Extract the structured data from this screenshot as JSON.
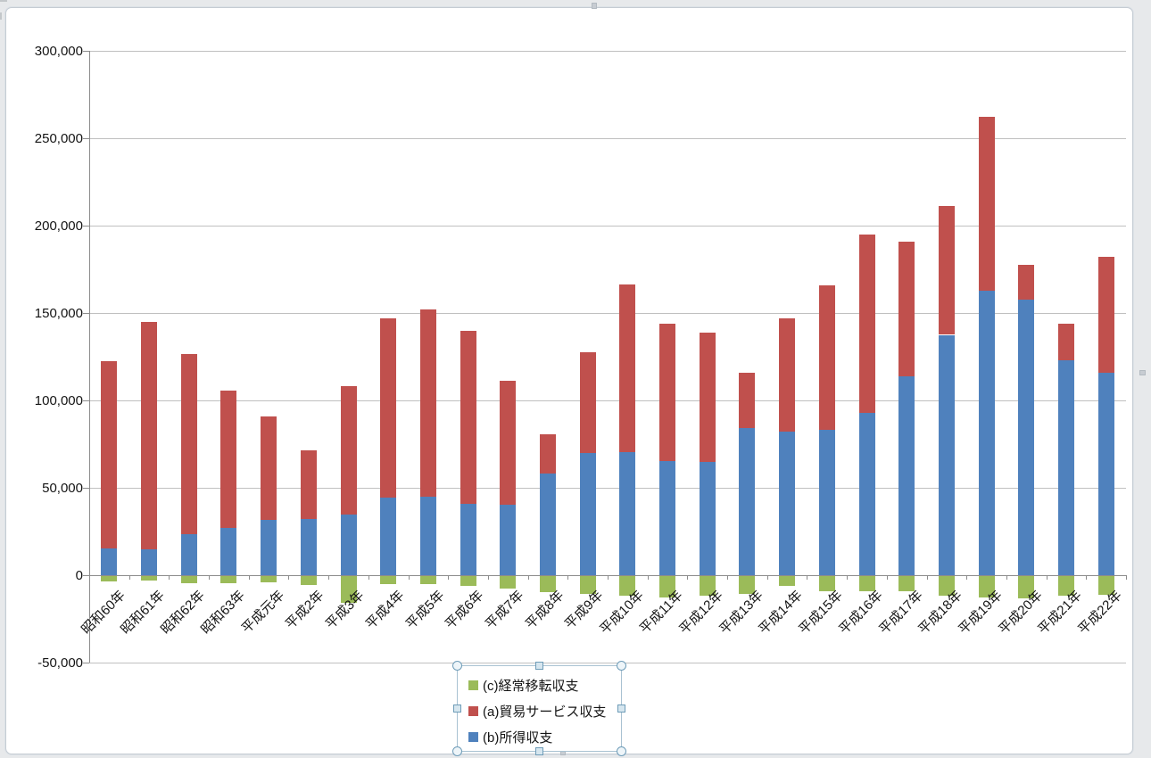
{
  "chart_data": {
    "type": "bar",
    "stacked": true,
    "categories": [
      "昭和60年",
      "昭和61年",
      "昭和62年",
      "昭和63年",
      "平成元年",
      "平成2年",
      "平成3年",
      "平成4年",
      "平成5年",
      "平成6年",
      "平成7年",
      "平成8年",
      "平成9年",
      "平成10年",
      "平成11年",
      "平成12年",
      "平成13年",
      "平成14年",
      "平成15年",
      "平成16年",
      "平成17年",
      "平成18年",
      "平成19年",
      "平成20年",
      "平成21年",
      "平成22年"
    ],
    "series": [
      {
        "name": "(b)所得収支",
        "color": "#4F81BD",
        "values": [
          15500,
          15000,
          23500,
          27000,
          31500,
          32000,
          34500,
          44500,
          45000,
          41000,
          40500,
          58000,
          70000,
          70500,
          65500,
          65000,
          84000,
          82000,
          83000,
          93000,
          114000,
          137500,
          163000,
          157500,
          123000,
          116000
        ]
      },
      {
        "name": "(a)貿易サービス収支",
        "color": "#C0504D",
        "values": [
          107000,
          130000,
          103000,
          78500,
          59500,
          39500,
          73500,
          102500,
          107000,
          99000,
          70500,
          22500,
          57500,
          96000,
          78500,
          74000,
          32000,
          65000,
          83000,
          102000,
          77000,
          73500,
          99000,
          20000,
          21000,
          66000
        ]
      },
      {
        "name": "(c)経常移転収支",
        "color": "#9BBB59",
        "values": [
          -3500,
          -3000,
          -4500,
          -4500,
          -4000,
          -5500,
          -16000,
          -5000,
          -5000,
          -6000,
          -7500,
          -9500,
          -10500,
          -11500,
          -13000,
          -11500,
          -10500,
          -6000,
          -9000,
          -9000,
          -9000,
          -11500,
          -12500,
          -13500,
          -11500,
          -11000
        ]
      }
    ],
    "title": "",
    "xlabel": "",
    "ylabel": "",
    "ylim": [
      -50000,
      300000
    ],
    "y_ticks": [
      {
        "value": 300000,
        "label": "300,000"
      },
      {
        "value": 250000,
        "label": "250,000"
      },
      {
        "value": 200000,
        "label": "200,000"
      },
      {
        "value": 150000,
        "label": "150,000"
      },
      {
        "value": 100000,
        "label": "100,000"
      },
      {
        "value": 50000,
        "label": "50,000"
      },
      {
        "value": 0,
        "label": "0"
      },
      {
        "value": -50000,
        "label": "-50,000"
      }
    ],
    "grid": true,
    "legend_position": "bottom-center"
  },
  "legend": {
    "items": [
      {
        "label": "(c)経常移転収支",
        "color": "#9BBB59",
        "series_key": "transfers"
      },
      {
        "label": "(a)貿易サービス収支",
        "color": "#C0504D",
        "series_key": "trade-services"
      },
      {
        "label": "(b)所得収支",
        "color": "#4F81BD",
        "series_key": "income"
      }
    ]
  }
}
